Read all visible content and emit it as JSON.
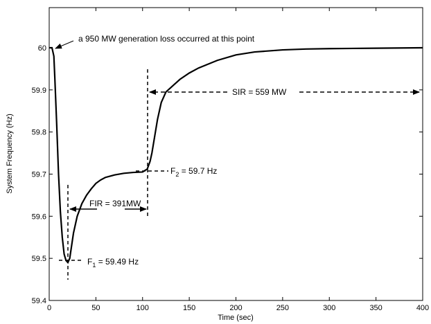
{
  "chart_data": {
    "type": "line",
    "xlabel": "Time (sec)",
    "ylabel": "System Frequency (Hz)",
    "xlim": [
      0,
      400
    ],
    "ylim": [
      59.4,
      60.05
    ],
    "xticks": [
      0,
      50,
      100,
      150,
      200,
      250,
      300,
      350,
      400
    ],
    "yticks": [
      59.4,
      59.5,
      59.6,
      59.7,
      59.8,
      59.9,
      60
    ],
    "ytick_labels": [
      "59.4",
      "59.5",
      "59.6",
      "59.7",
      "59.8",
      "59.9",
      "60"
    ],
    "grid": false,
    "series": [
      {
        "x": [
          0,
          3,
          5,
          6,
          8,
          10,
          12,
          14,
          16,
          18,
          20,
          22,
          24,
          26,
          30,
          35,
          40,
          45,
          50,
          55,
          60,
          70,
          80,
          90,
          100,
          105,
          108,
          110,
          113,
          116,
          120,
          125,
          130,
          135,
          140,
          150,
          160,
          180,
          200,
          220,
          250,
          275,
          300,
          350,
          400
        ],
        "y": [
          60.0,
          60.0,
          59.98,
          59.93,
          59.82,
          59.7,
          59.61,
          59.55,
          59.51,
          59.495,
          59.49,
          59.5,
          59.53,
          59.56,
          59.6,
          59.63,
          59.65,
          59.665,
          59.678,
          59.686,
          59.692,
          59.698,
          59.702,
          59.704,
          59.705,
          59.712,
          59.73,
          59.75,
          59.79,
          59.83,
          59.87,
          59.895,
          59.905,
          59.915,
          59.925,
          59.94,
          59.952,
          59.97,
          59.983,
          59.99,
          59.995,
          59.997,
          59.998,
          59.999,
          60.0
        ]
      }
    ],
    "annotations": {
      "loss": "a 950 MW generation loss  occurred at this point",
      "f1_main": "F",
      "f1_sub": "1",
      "f1_value": " = 59.49 Hz",
      "f2_main": "F",
      "f2_sub": "2",
      "f2_value": " = 59.7 Hz",
      "fir": "FIR = 391MW",
      "sir": "SIR = 559 MW"
    }
  }
}
